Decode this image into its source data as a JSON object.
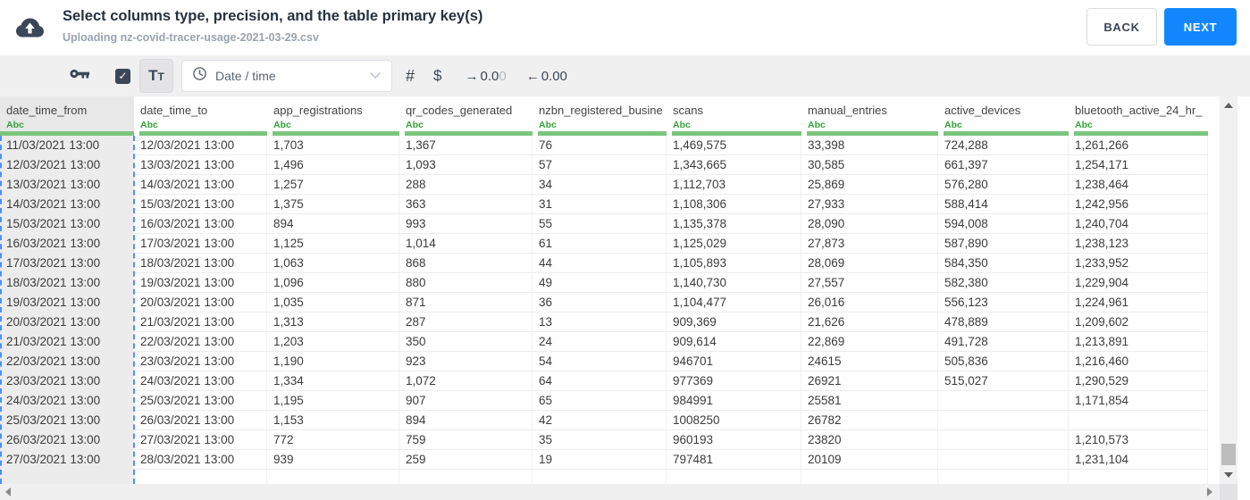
{
  "header": {
    "title": "Select columns type, precision, and the table primary key(s)",
    "subtitle": "Uploading nz-covid-tracer-usage-2021-03-29.csv",
    "back_label": "BACK",
    "next_label": "NEXT"
  },
  "toolbar": {
    "checkbox_checked": "✓",
    "text_type_large": "T",
    "text_type_small": "T",
    "type_select_value": "Date / time",
    "number_label": "#",
    "currency_label": "$",
    "decimal_right": {
      "arrow": "→",
      "digits": "0.0",
      "muted": "0"
    },
    "decimal_left": {
      "arrow": "←",
      "digits": "0.00",
      "muted": ""
    }
  },
  "icons": {
    "upload": "cloud-upload-icon",
    "primary_key": "key-icon",
    "include_column": "checkbox-checked-icon",
    "type_dropdown_glyph": "clock-icon",
    "dropdown_chevron": "chevron-down-icon"
  },
  "table": {
    "column_type_label": "Abc",
    "selected_column_index": 0,
    "columns": [
      "date_time_from",
      "date_time_to",
      "app_registrations",
      "qr_codes_generated",
      "nzbn_registered_busine",
      "scans",
      "manual_entries",
      "active_devices",
      "bluetooth_active_24_hr_"
    ],
    "rows": [
      [
        "11/03/2021 13:00",
        "12/03/2021 13:00",
        "1,703",
        "1,367",
        "76",
        "1,469,575",
        "33,398",
        "724,288",
        "1,261,266"
      ],
      [
        "12/03/2021 13:00",
        "13/03/2021 13:00",
        "1,496",
        "1,093",
        "57",
        "1,343,665",
        "30,585",
        "661,397",
        "1,254,171"
      ],
      [
        "13/03/2021 13:00",
        "14/03/2021 13:00",
        "1,257",
        "288",
        "34",
        "1,112,703",
        "25,869",
        "576,280",
        "1,238,464"
      ],
      [
        "14/03/2021 13:00",
        "15/03/2021 13:00",
        "1,375",
        "363",
        "31",
        "1,108,306",
        "27,933",
        "588,414",
        "1,242,956"
      ],
      [
        "15/03/2021 13:00",
        "16/03/2021 13:00",
        "894",
        "993",
        "55",
        "1,135,378",
        "28,090",
        "594,008",
        "1,240,704"
      ],
      [
        "16/03/2021 13:00",
        "17/03/2021 13:00",
        "1,125",
        "1,014",
        "61",
        "1,125,029",
        "27,873",
        "587,890",
        "1,238,123"
      ],
      [
        "17/03/2021 13:00",
        "18/03/2021 13:00",
        "1,063",
        "868",
        "44",
        "1,105,893",
        "28,069",
        "584,350",
        "1,233,952"
      ],
      [
        "18/03/2021 13:00",
        "19/03/2021 13:00",
        "1,096",
        "880",
        "49",
        "1,140,730",
        "27,557",
        "582,380",
        "1,229,904"
      ],
      [
        "19/03/2021 13:00",
        "20/03/2021 13:00",
        "1,035",
        "871",
        "36",
        "1,104,477",
        "26,016",
        "556,123",
        "1,224,961"
      ],
      [
        "20/03/2021 13:00",
        "21/03/2021 13:00",
        "1,313",
        "287",
        "13",
        "909,369",
        "21,626",
        "478,889",
        "1,209,602"
      ],
      [
        "21/03/2021 13:00",
        "22/03/2021 13:00",
        "1,203",
        "350",
        "24",
        "909,614",
        "22,869",
        "491,728",
        "1,213,891"
      ],
      [
        "22/03/2021 13:00",
        "23/03/2021 13:00",
        "1,190",
        "923",
        "54",
        "946701",
        "24615",
        "505,836",
        "1,216,460"
      ],
      [
        "23/03/2021 13:00",
        "24/03/2021 13:00",
        "1,334",
        "1,072",
        "64",
        "977369",
        "26921",
        "515,027",
        "1,290,529"
      ],
      [
        "24/03/2021 13:00",
        "25/03/2021 13:00",
        "1,195",
        "907",
        "65",
        "984991",
        "25581",
        "",
        "1,171,854"
      ],
      [
        "25/03/2021 13:00",
        "26/03/2021 13:00",
        "1,153",
        "894",
        "42",
        "1008250",
        "26782",
        "",
        ""
      ],
      [
        "26/03/2021 13:00",
        "27/03/2021 13:00",
        "772",
        "759",
        "35",
        "960193",
        "23820",
        "",
        "1,210,573"
      ],
      [
        "27/03/2021 13:00",
        "28/03/2021 13:00",
        "939",
        "259",
        "19",
        "797481",
        "20109",
        "",
        "1,231,104"
      ]
    ]
  },
  "colors": {
    "accent": "#1287fd",
    "selection": "#4d90fe",
    "bar_green": "#7cc57e",
    "abc_green": "#35a33c"
  }
}
